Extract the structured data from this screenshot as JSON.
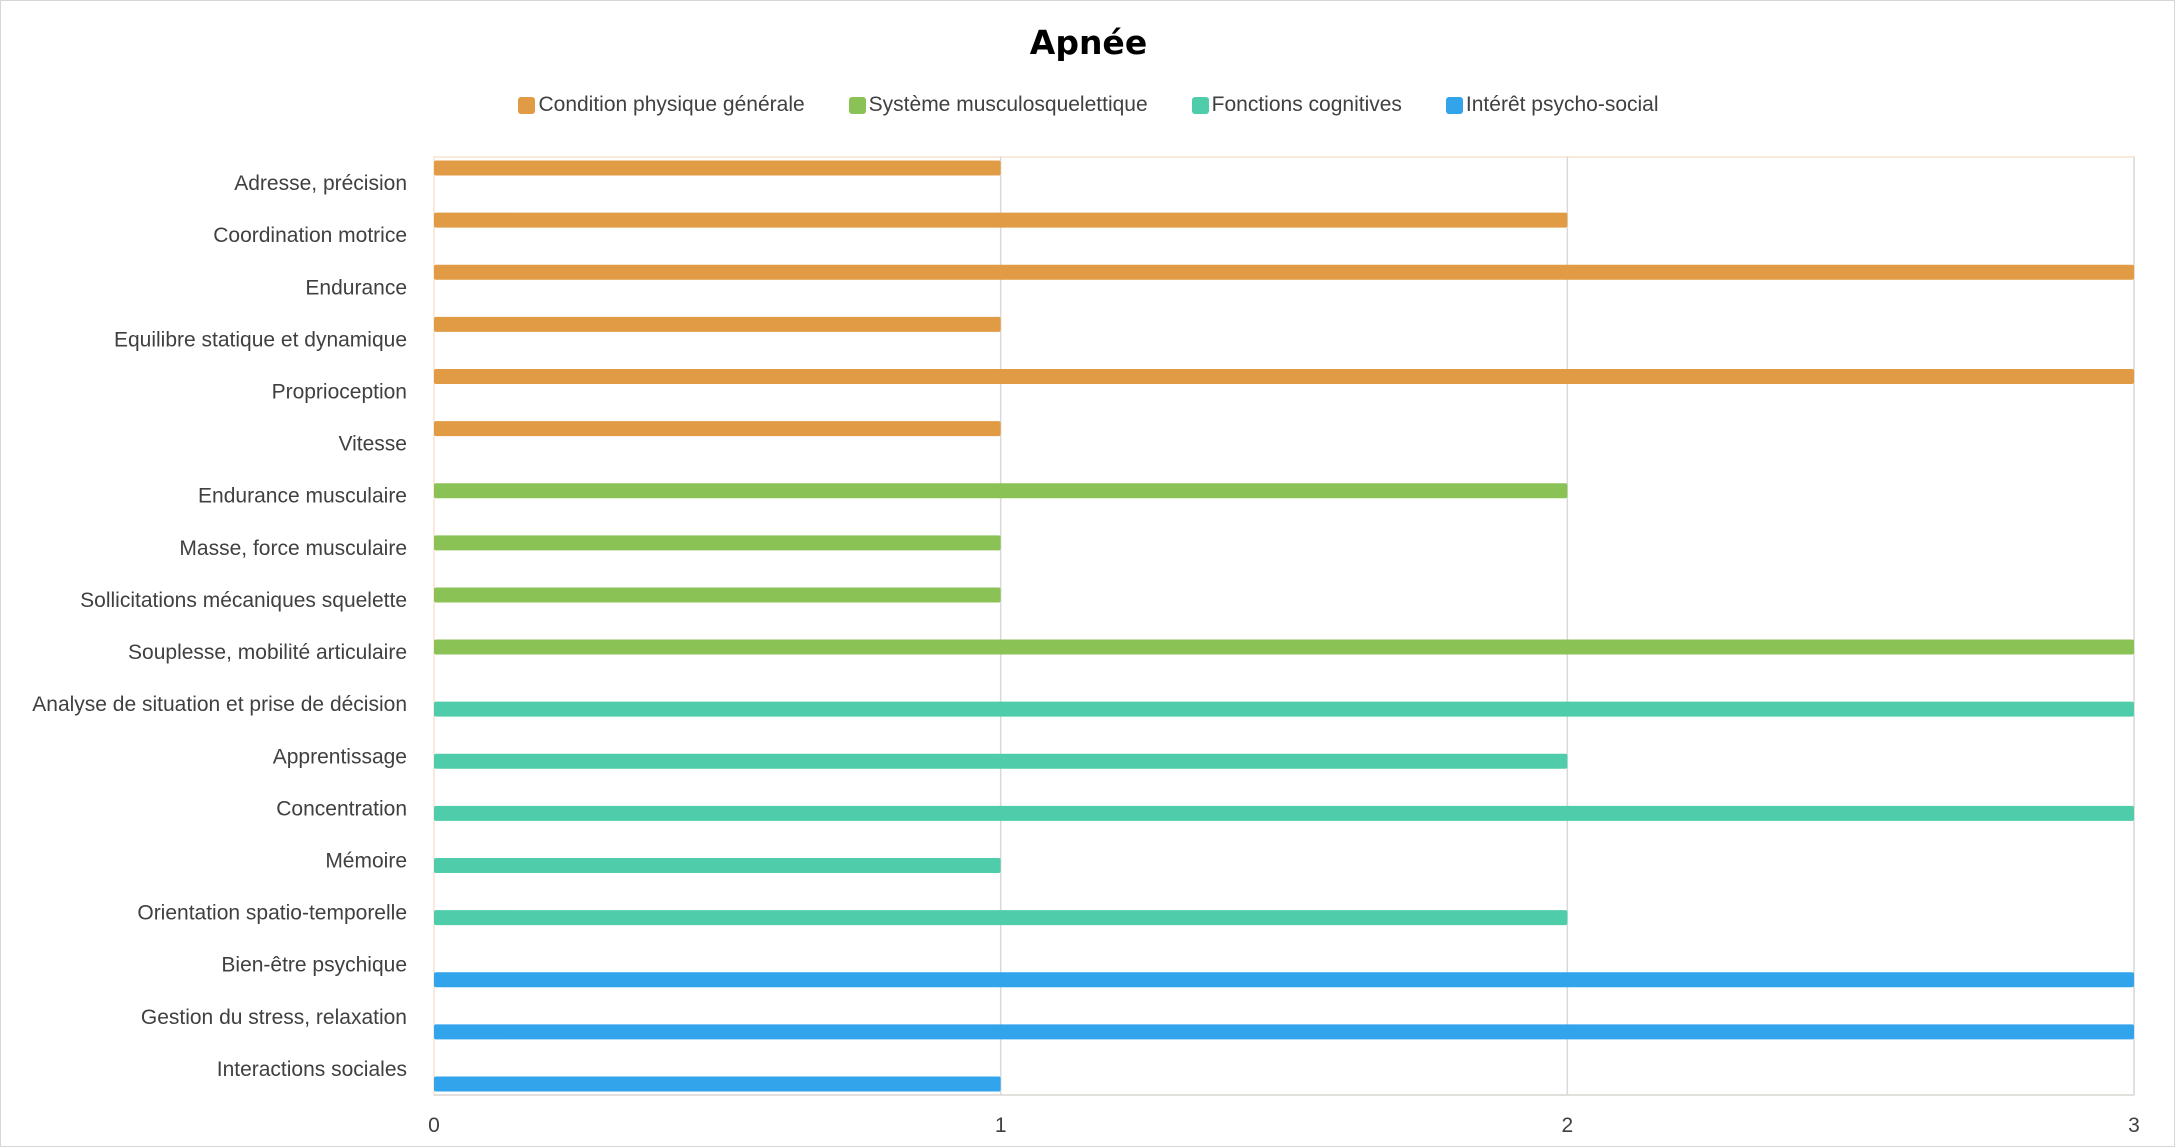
{
  "chart_data": {
    "type": "bar",
    "orientation": "horizontal",
    "title": "Apnée",
    "xlabel": "",
    "ylabel": "",
    "xlim": [
      0,
      3
    ],
    "xticks": [
      "0",
      "1",
      "2",
      "3"
    ],
    "grid": "vertical",
    "legend_position": "top",
    "series": [
      {
        "name": "Condition physique générale",
        "color": "#e09b44",
        "points": [
          {
            "category": "Adresse, précision",
            "value": 1
          },
          {
            "category": "Coordination motrice",
            "value": 2
          },
          {
            "category": "Endurance",
            "value": 3
          },
          {
            "category": "Equilibre statique et dynamique",
            "value": 1
          },
          {
            "category": "Proprioception",
            "value": 3
          },
          {
            "category": "Vitesse",
            "value": 1
          }
        ]
      },
      {
        "name": "Système musculosquelettique",
        "color": "#8bc256",
        "points": [
          {
            "category": "Endurance musculaire",
            "value": 2
          },
          {
            "category": "Masse,  force musculaire",
            "value": 1
          },
          {
            "category": "Sollicitations mécaniques squelette",
            "value": 1
          },
          {
            "category": "Souplesse, mobilité articulaire",
            "value": 3
          }
        ]
      },
      {
        "name": "Fonctions cognitives",
        "color": "#4fcdaa",
        "points": [
          {
            "category": "Analyse de situation et prise de décision",
            "value": 3
          },
          {
            "category": "Apprentissage",
            "value": 2
          },
          {
            "category": "Concentration",
            "value": 3
          },
          {
            "category": "Mémoire",
            "value": 1
          },
          {
            "category": "Orientation spatio-temporelle",
            "value": 2
          }
        ]
      },
      {
        "name": "Intérêt psycho-social",
        "color": "#31a4ec",
        "points": [
          {
            "category": "Bien-être psychique",
            "value": 3
          },
          {
            "category": "Gestion du stress, relaxation",
            "value": 3
          },
          {
            "category": "Interactions sociales",
            "value": 1
          }
        ]
      }
    ]
  }
}
